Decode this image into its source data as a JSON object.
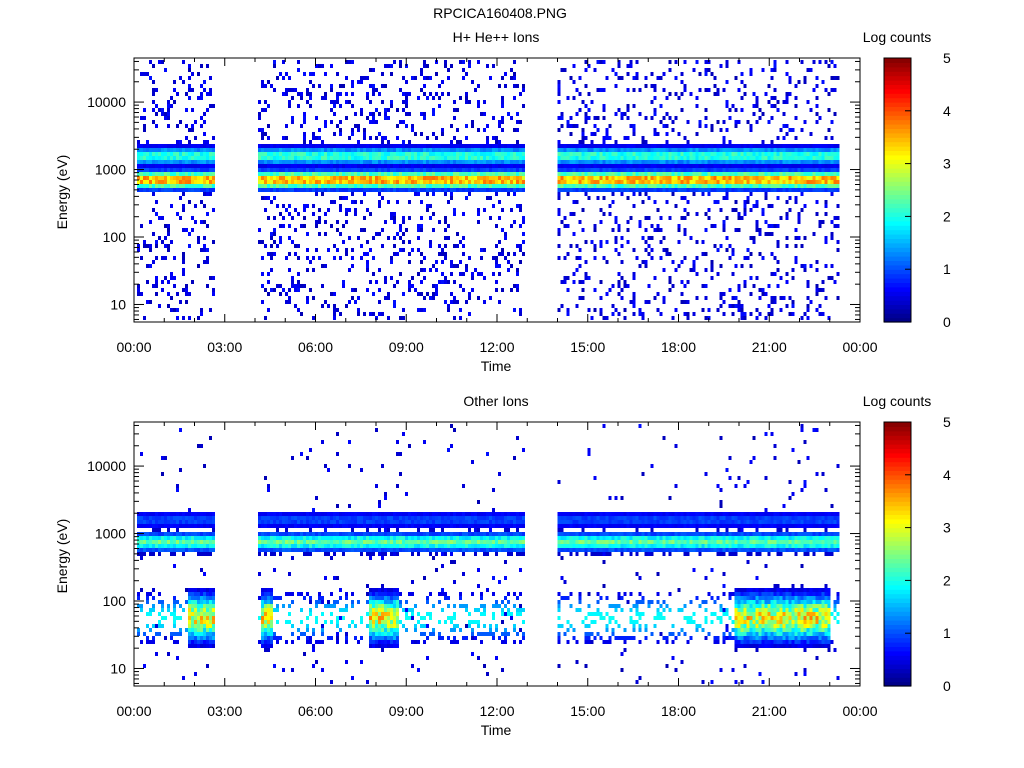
{
  "figure_title": "RPCICA160408.PNG",
  "colorbar": {
    "label": "Log counts",
    "ticks": [
      "0",
      "1",
      "2",
      "3",
      "4",
      "5"
    ]
  },
  "chart_data": [
    {
      "type": "heatmap",
      "title": "H+ He++ Ions",
      "xlabel": "Time",
      "ylabel": "Energy (eV)",
      "x_ticks": [
        "00:00",
        "03:00",
        "06:00",
        "09:00",
        "12:00",
        "15:00",
        "18:00",
        "21:00",
        "00:00"
      ],
      "y_ticks": [
        "10",
        "100",
        "1000",
        "10000"
      ],
      "xlim_hours": [
        0,
        24
      ],
      "ylim_eV": [
        5.5,
        45000
      ],
      "yscale": "log",
      "zlabel": "Log counts",
      "zlim": [
        0,
        5
      ],
      "data_segments_hours": [
        [
          0.1,
          2.6
        ],
        [
          4.1,
          12.9
        ],
        [
          14.0,
          23.3
        ]
      ],
      "bands": [
        {
          "name": "core",
          "energy_eV": 750,
          "peak_log_counts": 3.7
        },
        {
          "name": "secondary",
          "energy_eV": 1700,
          "peak_log_counts": 2.2
        }
      ]
    },
    {
      "type": "heatmap",
      "title": "Other Ions",
      "xlabel": "Time",
      "ylabel": "Energy (eV)",
      "x_ticks": [
        "00:00",
        "03:00",
        "06:00",
        "09:00",
        "12:00",
        "15:00",
        "18:00",
        "21:00",
        "00:00"
      ],
      "y_ticks": [
        "10",
        "100",
        "1000",
        "10000"
      ],
      "xlim_hours": [
        0,
        24
      ],
      "ylim_eV": [
        5.5,
        45000
      ],
      "yscale": "log",
      "zlabel": "Log counts",
      "zlim": [
        0,
        5
      ],
      "data_segments_hours": [
        [
          0.1,
          2.6
        ],
        [
          4.1,
          12.9
        ],
        [
          14.0,
          23.3
        ]
      ],
      "bands": [
        {
          "name": "core",
          "energy_eV": 800,
          "peak_log_counts": 2.4
        },
        {
          "name": "secondary",
          "energy_eV": 1700,
          "peak_log_counts": 1.0
        },
        {
          "name": "low-energy bursts",
          "energy_eV": 60,
          "peak_log_counts": 3.2
        }
      ]
    }
  ]
}
